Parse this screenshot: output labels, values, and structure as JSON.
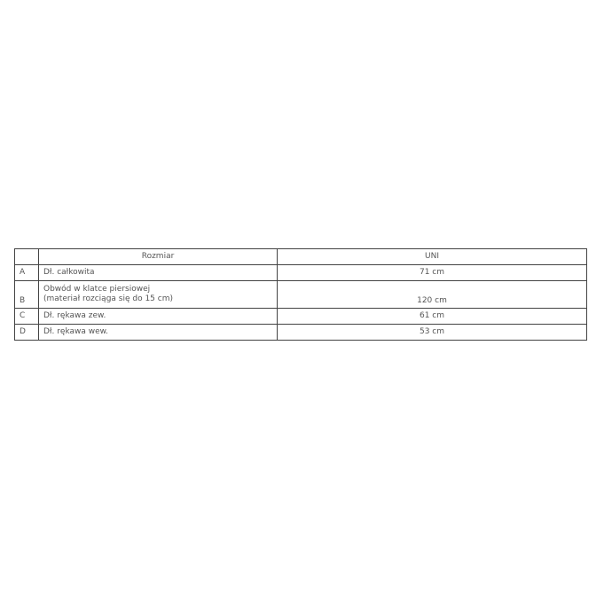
{
  "table": {
    "header": {
      "letter": "",
      "name": "Rozmiar",
      "value": "UNI"
    },
    "rows": [
      {
        "letter": "A",
        "name_lines": [
          "Dł. całkowita"
        ],
        "value": "71 cm"
      },
      {
        "letter": "B",
        "name_lines": [
          "Obwód w klatce piersiowej",
          "(materiał rozciąga się do 15 cm)"
        ],
        "value": "120 cm"
      },
      {
        "letter": "C",
        "name_lines": [
          "Dł. rękawa zew."
        ],
        "value": "61 cm"
      },
      {
        "letter": "D",
        "name_lines": [
          "Dł. rękawa wew."
        ],
        "value": "53 cm"
      }
    ]
  }
}
